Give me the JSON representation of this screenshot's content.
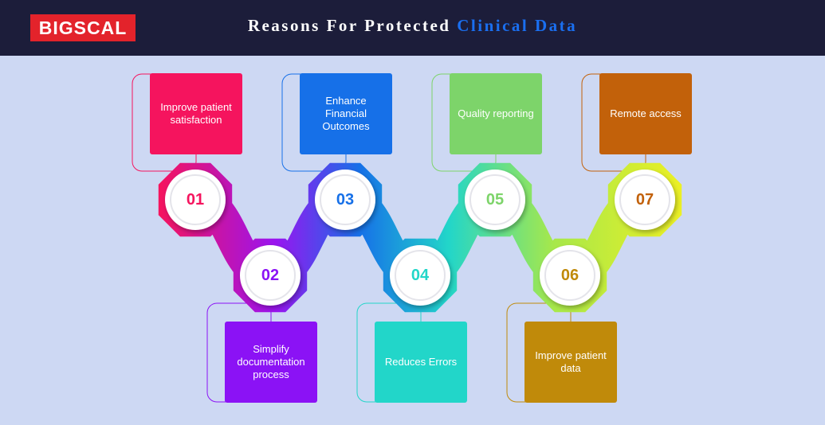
{
  "header": {
    "logo": "BIGSCAL",
    "title": "Reasons For Protected",
    "title_highlight": "Clinical Data"
  },
  "items": [
    {
      "number": "01",
      "label": "Improve patient satisfaction",
      "color": "#f5145e"
    },
    {
      "number": "02",
      "label": "Simplify documentation process",
      "color": "#8b12f5"
    },
    {
      "number": "03",
      "label": "Enhance Financial Outcomes",
      "color": "#1670e8"
    },
    {
      "number": "04",
      "label": "Reduces Errors",
      "color": "#22d6c9"
    },
    {
      "number": "05",
      "label": "Quality reporting",
      "color": "#7dd46a"
    },
    {
      "number": "06",
      "label": "Improve patient data",
      "color": "#c08a0a"
    },
    {
      "number": "07",
      "label": "Remote access",
      "color": "#c2610a"
    }
  ]
}
